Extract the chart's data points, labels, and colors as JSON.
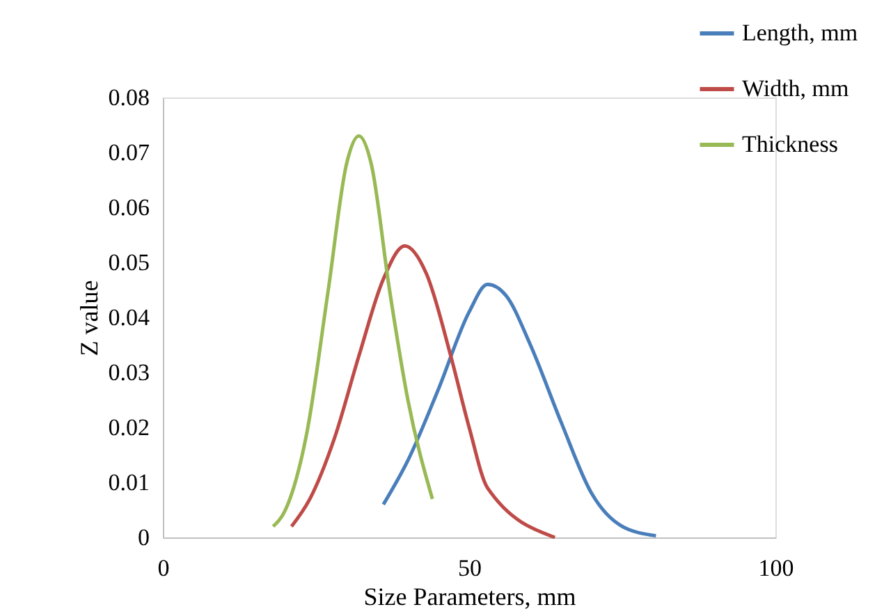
{
  "chart_data": {
    "type": "line",
    "xlabel": "Size Parameters, mm",
    "ylabel": "Z value",
    "xlim": [
      0,
      100
    ],
    "xticks": [
      0,
      50,
      100
    ],
    "ylim": [
      0,
      0.08
    ],
    "yticks": [
      0,
      0.01,
      0.02,
      0.03,
      0.04,
      0.05,
      0.06,
      0.07,
      0.08
    ],
    "grid": false,
    "legend": "top right",
    "marker": "none",
    "line_style": "solid",
    "series": [
      {
        "name": "Length, mm",
        "color": "#4a7ebb",
        "x": [
          36,
          40,
          45,
          50,
          53,
          56,
          60,
          65,
          70,
          75,
          80.5
        ],
        "values": [
          0.006,
          0.014,
          0.027,
          0.041,
          0.046,
          0.044,
          0.035,
          0.021,
          0.008,
          0.002,
          0.0003
        ]
      },
      {
        "name": "Width, mm",
        "color": "#be4b48",
        "x": [
          21,
          24,
          28,
          32,
          36,
          39.5,
          43,
          47,
          50,
          53,
          64
        ],
        "values": [
          0.002,
          0.007,
          0.018,
          0.033,
          0.047,
          0.053,
          0.048,
          0.033,
          0.02,
          0.009,
          0
        ]
      },
      {
        "name": "Thickness",
        "color": "#98b954",
        "x": [
          18,
          20,
          23.5,
          27,
          30,
          32,
          34,
          37,
          40,
          44
        ],
        "values": [
          0.002,
          0.005,
          0.019,
          0.045,
          0.068,
          0.073,
          0.068,
          0.045,
          0.025,
          0.007
        ]
      }
    ]
  }
}
